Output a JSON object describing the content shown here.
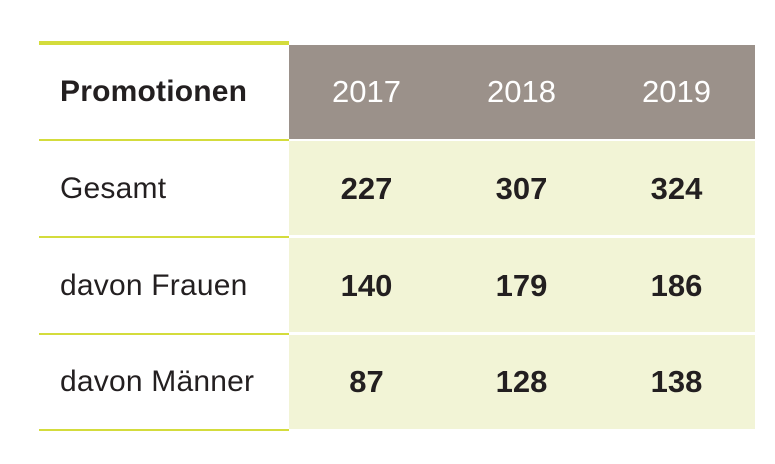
{
  "table": {
    "header": {
      "label": "Promotionen",
      "years": [
        "2017",
        "2018",
        "2019"
      ]
    },
    "rows": [
      {
        "label": "Gesamt",
        "values": [
          "227",
          "307",
          "324"
        ]
      },
      {
        "label": "davon Frauen",
        "values": [
          "140",
          "179",
          "186"
        ]
      },
      {
        "label": "davon Männer",
        "values": [
          "87",
          "128",
          "138"
        ]
      }
    ]
  },
  "colors": {
    "accent_line": "#d4dc3c",
    "header_bg": "#9b918a",
    "cell_bg": "#f2f4d6",
    "text": "#231f20"
  }
}
